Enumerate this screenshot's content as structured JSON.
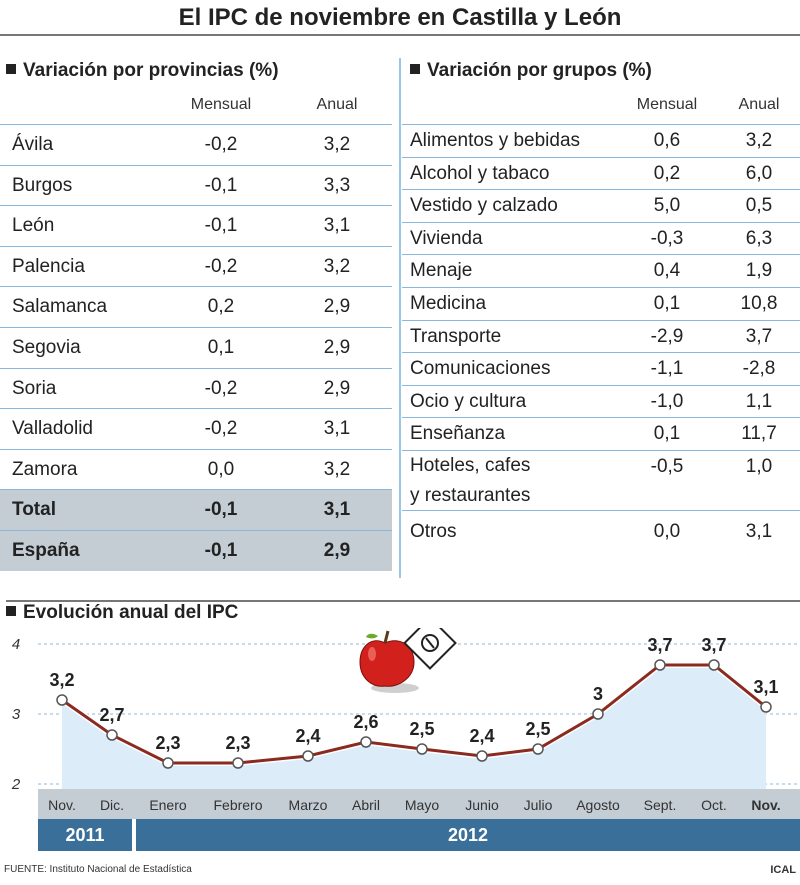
{
  "title": "El IPC de noviembre en Castilla y León",
  "provinces": {
    "heading": "Variación por provincias (%)",
    "col_mensual": "Mensual",
    "col_anual": "Anual",
    "rows": [
      {
        "name": "Ávila",
        "mensual": "-0,2",
        "anual": "3,2"
      },
      {
        "name": "Burgos",
        "mensual": "-0,1",
        "anual": "3,3"
      },
      {
        "name": "León",
        "mensual": "-0,1",
        "anual": "3,1"
      },
      {
        "name": "Palencia",
        "mensual": "-0,2",
        "anual": "3,2"
      },
      {
        "name": "Salamanca",
        "mensual": "0,2",
        "anual": "2,9"
      },
      {
        "name": "Segovia",
        "mensual": "0,1",
        "anual": "2,9"
      },
      {
        "name": "Soria",
        "mensual": "-0,2",
        "anual": "2,9"
      },
      {
        "name": "Valladolid",
        "mensual": "-0,2",
        "anual": "3,1"
      },
      {
        "name": "Zamora",
        "mensual": "0,0",
        "anual": "3,2"
      }
    ],
    "total": {
      "name": "Total",
      "mensual": "-0,1",
      "anual": "3,1"
    },
    "espana": {
      "name": "España",
      "mensual": "-0,1",
      "anual": "2,9"
    }
  },
  "groups": {
    "heading": "Variación por grupos (%)",
    "col_mensual": "Mensual",
    "col_anual": "Anual",
    "rows": [
      {
        "name": "Alimentos y bebidas",
        "mensual": "0,6",
        "anual": "3,2"
      },
      {
        "name": "Alcohol y tabaco",
        "mensual": "0,2",
        "anual": "6,0"
      },
      {
        "name": "Vestido y calzado",
        "mensual": "5,0",
        "anual": "0,5"
      },
      {
        "name": "Vivienda",
        "mensual": "-0,3",
        "anual": "6,3"
      },
      {
        "name": "Menaje",
        "mensual": "0,4",
        "anual": "1,9"
      },
      {
        "name": "Medicina",
        "mensual": "0,1",
        "anual": "10,8"
      },
      {
        "name": "Transporte",
        "mensual": "-2,9",
        "anual": "3,7"
      },
      {
        "name": "Comunicaciones",
        "mensual": "-1,1",
        "anual": "-2,8"
      },
      {
        "name": "Ocio y cultura",
        "mensual": "-1,0",
        "anual": "1,1"
      },
      {
        "name": "Enseñanza",
        "mensual": "0,1",
        "anual": "11,7"
      }
    ],
    "hoteles": {
      "line1": "Hoteles, cafes",
      "line2": "y restaurantes",
      "mensual": "-0,5",
      "anual": "1,0"
    },
    "otros": {
      "name": "Otros",
      "mensual": "0,0",
      "anual": "3,1"
    }
  },
  "chart_data": {
    "type": "line",
    "title": "Evolución anual del IPC",
    "categories": [
      "Nov.",
      "Dic.",
      "Enero",
      "Febrero",
      "Marzo",
      "Abril",
      "Mayo",
      "Junio",
      "Julio",
      "Agosto",
      "Sept.",
      "Oct.",
      "Nov."
    ],
    "values": [
      3.2,
      2.7,
      2.3,
      2.3,
      2.4,
      2.6,
      2.5,
      2.4,
      2.5,
      3.0,
      3.7,
      3.7,
      3.1
    ],
    "data_labels": [
      "3,2",
      "2,7",
      "2,3",
      "2,3",
      "2,4",
      "2,6",
      "2,5",
      "2,4",
      "2,5",
      "3",
      "3,7",
      "3,7",
      "3,1"
    ],
    "yticks": [
      "2",
      "3",
      "4"
    ],
    "ylim": [
      2,
      4
    ],
    "years": [
      "2011",
      "2012"
    ],
    "line_color": "#8b2a1e",
    "fill_color": "#dcecf8"
  },
  "footer": {
    "source": "FUENTE: Instituto Nacional de Estadística",
    "credit": "ICAL"
  }
}
